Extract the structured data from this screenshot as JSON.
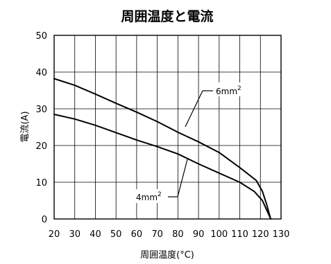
{
  "chart_data": {
    "type": "line",
    "title": "周囲温度と電流",
    "xlabel": "周囲温度(°C)",
    "ylabel": "電流(A)",
    "xlim": [
      20,
      130
    ],
    "ylim": [
      0,
      50
    ],
    "xticks": [
      20,
      30,
      40,
      50,
      60,
      70,
      80,
      90,
      100,
      110,
      120,
      130
    ],
    "yticks": [
      0,
      10,
      20,
      30,
      40,
      50
    ],
    "grid": true,
    "legend": "none",
    "series": [
      {
        "name": "6mm²",
        "points": [
          [
            20,
            38.2
          ],
          [
            30,
            36.4
          ],
          [
            40,
            34.0
          ],
          [
            50,
            31.5
          ],
          [
            60,
            29.1
          ],
          [
            70,
            26.5
          ],
          [
            80,
            23.6
          ],
          [
            90,
            21.0
          ],
          [
            100,
            18.1
          ],
          [
            110,
            14.0
          ],
          [
            118,
            10.5
          ],
          [
            121,
            7.5
          ],
          [
            123,
            4.0
          ],
          [
            125,
            0
          ]
        ]
      },
      {
        "name": "4mm²",
        "points": [
          [
            20,
            28.5
          ],
          [
            30,
            27.2
          ],
          [
            40,
            25.5
          ],
          [
            50,
            23.5
          ],
          [
            60,
            21.5
          ],
          [
            70,
            19.7
          ],
          [
            80,
            17.7
          ],
          [
            90,
            15.0
          ],
          [
            100,
            12.5
          ],
          [
            110,
            10.0
          ],
          [
            117,
            7.5
          ],
          [
            121,
            5.0
          ],
          [
            123,
            2.5
          ],
          [
            125,
            0
          ]
        ]
      }
    ],
    "annotations": [
      {
        "label": "6mm",
        "sup": "2",
        "series": 0
      },
      {
        "label": "4mm",
        "sup": "2",
        "series": 1
      }
    ]
  }
}
